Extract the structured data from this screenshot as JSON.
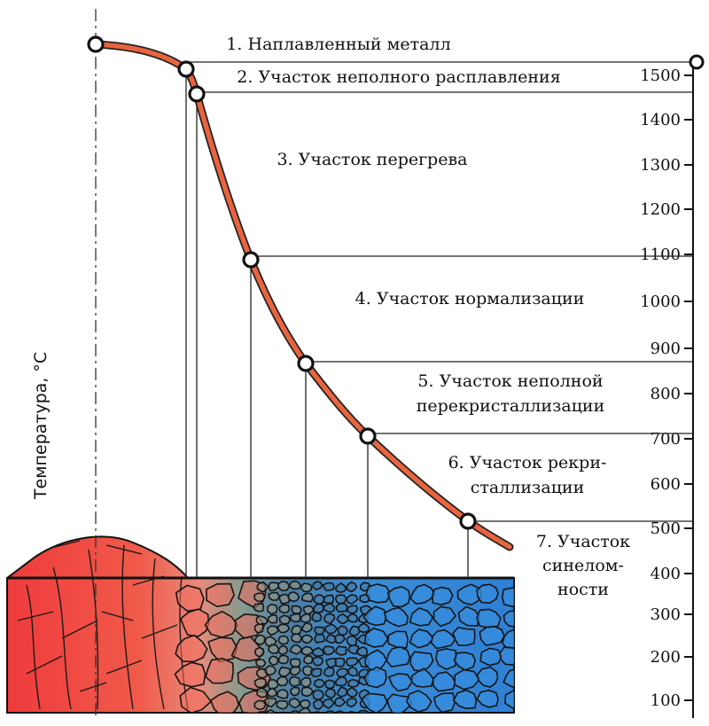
{
  "axis": {
    "title": "Температура, °C",
    "ticks": [
      "1500",
      "1400",
      "1300",
      "1200",
      "1100",
      "1000",
      "900",
      "800",
      "700",
      "600",
      "500",
      "400",
      "300",
      "200",
      "100"
    ]
  },
  "zones": [
    {
      "lines": [
        "1. Наплавленный металл"
      ]
    },
    {
      "lines": [
        "2. Участок неполного расплавления"
      ]
    },
    {
      "lines": [
        "3. Участок перегрева"
      ]
    },
    {
      "lines": [
        "4. Участок нормализации"
      ]
    },
    {
      "lines": [
        "5. Участок неполной",
        "перекристаллизации"
      ]
    },
    {
      "lines": [
        "6. Участок рекри-",
        "сталлизации"
      ]
    },
    {
      "lines": [
        "7. Участок",
        "синелом-",
        "ности"
      ]
    }
  ],
  "curve_points_celsius": [
    1550,
    1520,
    1450,
    1100,
    870,
    720,
    530
  ],
  "colors": {
    "curve": "#e8643e",
    "weld_hot": "#ef3b3c",
    "weld_mid": "#f06a4a",
    "haz_cool": "#3a86d8",
    "grain_edge": "#1a1a1a"
  }
}
